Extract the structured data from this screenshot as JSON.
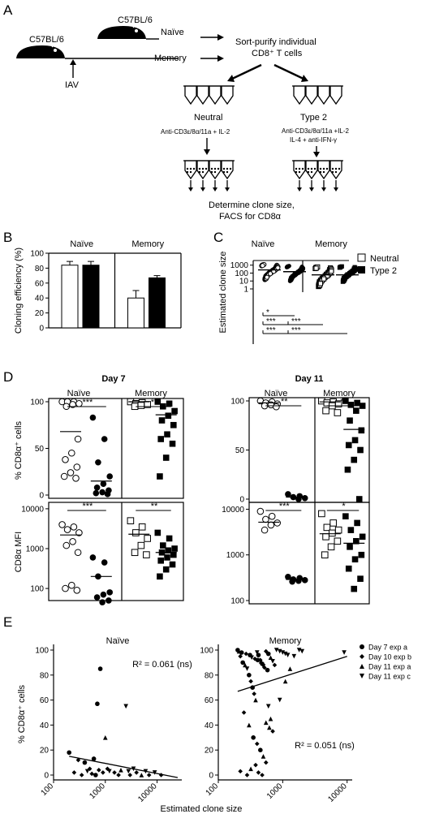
{
  "panel_a": {
    "label": "A",
    "mouse_left": "C57BL/6",
    "mouse_top": "C57BL/6",
    "naive": "Naïve",
    "memory": "Memory",
    "iav": "IAV",
    "sort_line1": "Sort-purify individual",
    "sort_line2": "CD8⁺ T cells",
    "neutral": "Neutral",
    "type2": "Type 2",
    "neutral_cond": "Anti-CD3ε/8α/11a + IL-2",
    "type2_cond1": "Anti-CD3ε/8α/11a +IL-2",
    "type2_cond2": "IL-4 + anti-IFN-γ",
    "determine1": "Determine clone size,",
    "determine2": "FACS for CD8α"
  },
  "panel_b": {
    "label": "B"
  },
  "panel_c": {
    "label": "C",
    "legend_neutral": "Neutral",
    "legend_type2": "Type 2"
  },
  "panel_d": {
    "label": "D"
  },
  "panel_e": {
    "label": "E"
  },
  "chart_data": [
    {
      "id": "B",
      "type": "bar",
      "groups": [
        "Naïve",
        "Memory"
      ],
      "series": [
        {
          "name": "Neutral",
          "values": [
            84,
            40
          ],
          "errors": [
            5,
            10
          ],
          "color": "#ffffff"
        },
        {
          "name": "Type 2",
          "values": [
            84,
            67
          ],
          "errors": [
            5,
            3
          ],
          "color": "#000000"
        }
      ],
      "ylabel": "Cloning efficiency (%)",
      "ylim": [
        0,
        100
      ],
      "yticks": [
        "0",
        "20",
        "40",
        "60",
        "80",
        "100"
      ]
    },
    {
      "id": "C",
      "type": "scatter",
      "scale": "log",
      "groups": [
        "Naïve",
        "Memory"
      ],
      "series_order": [
        "Naïve Neutral",
        "Naïve Type 2",
        "Memory Neutral",
        "Memory Type 2"
      ],
      "ylabel": "Estimated clone size",
      "yticks": [
        "1",
        "10",
        "100",
        "1000"
      ],
      "ylim": [
        1,
        1500
      ],
      "ranges": [
        [
          15,
          1200
        ],
        [
          10,
          800
        ],
        [
          2,
          600
        ],
        [
          8,
          700
        ]
      ],
      "medians": [
        250,
        150,
        60,
        60
      ],
      "significance": [
        {
          "label": "*",
          "from": 1,
          "to": 2
        },
        {
          "label": "***",
          "from": 1,
          "to": 3
        },
        {
          "label": "***",
          "from": 2,
          "to": 3
        },
        {
          "label": "***",
          "from": 1,
          "to": 4
        },
        {
          "label": "***",
          "from": 2,
          "to": 4
        }
      ]
    },
    {
      "id": "D",
      "type": "scatter",
      "titles": [
        "Day 7",
        "Day 11"
      ],
      "groups": [
        "Naïve",
        "Memory"
      ],
      "ylabel_top": "% CD8α⁺ cells",
      "ylabel_bottom": "CD8α  MFI",
      "top_yticks": [
        "0",
        "50",
        "100"
      ],
      "bottom_yticks": [
        "100",
        "1000",
        "10000"
      ],
      "bottom_yticks_day11": [
        "100",
        "1000",
        "10000"
      ],
      "day7_pct": {
        "naive_neutral": [
          100,
          100,
          100,
          98,
          97,
          95,
          60,
          45,
          38,
          30,
          24,
          20,
          18
        ],
        "naive_type2": [
          83,
          60,
          35,
          20,
          12,
          8,
          5,
          3,
          2,
          1
        ],
        "naive_means": [
          68,
          15
        ],
        "memory_neutral": [
          100,
          99,
          98,
          97,
          96,
          95
        ],
        "memory_type2": [
          100,
          98,
          95,
          90,
          85,
          80,
          75,
          65,
          60,
          55,
          40,
          20
        ],
        "memory_means": [
          100,
          86
        ],
        "sig": [
          "***",
          "**"
        ]
      },
      "day7_mfi": {
        "naive_neutral": [
          4000,
          3500,
          3000,
          2500,
          1500,
          1200,
          800,
          120,
          100,
          90
        ],
        "naive_type2": [
          600,
          450,
          200,
          80,
          70,
          60,
          50,
          45
        ],
        "naive_means": [
          2200,
          200
        ],
        "memory_neutral": [
          5000,
          3500,
          2500,
          1800,
          1200,
          800,
          700
        ],
        "memory_type2": [
          2500,
          1800,
          1200,
          1000,
          900,
          800,
          700,
          600,
          500,
          400,
          300,
          200
        ],
        "memory_means": [
          2300,
          800
        ],
        "sig": [
          "***",
          "**"
        ]
      },
      "day11_pct": {
        "naive_neutral": [
          100,
          99,
          98,
          97,
          96,
          95,
          94
        ],
        "naive_type2": [
          5,
          3,
          2,
          1,
          0
        ],
        "naive_means": [
          98,
          2
        ],
        "memory_neutral": [
          100,
          99,
          98,
          97,
          95,
          90,
          88
        ],
        "memory_type2": [
          100,
          98,
          96,
          95,
          90,
          80,
          70,
          60,
          55,
          50,
          40,
          30,
          0
        ],
        "memory_means": [
          99,
          71
        ],
        "sig": [
          "**",
          "**"
        ]
      },
      "day11_mfi": {
        "naive_neutral": [
          9000,
          7000,
          6000,
          5000,
          4500,
          3500
        ],
        "naive_type2": [
          330,
          310,
          290,
          280,
          270,
          260
        ],
        "naive_means": [
          5200,
          290
        ],
        "memory_neutral": [
          8000,
          5000,
          4000,
          3500,
          3000,
          2500,
          2000,
          1500,
          1000
        ],
        "memory_type2": [
          7000,
          5000,
          3500,
          2500,
          2000,
          1500,
          1000,
          800,
          500,
          300,
          180
        ],
        "memory_means": [
          2900,
          1800
        ],
        "sig": [
          "***",
          "*"
        ]
      }
    },
    {
      "id": "E",
      "type": "scatter",
      "titles": [
        "Naïve",
        "Memory"
      ],
      "xlabel": "Estimated clone size",
      "ylabel": "% CD8α⁺ cells",
      "xticks_left": [
        "100",
        "1000",
        "10000"
      ],
      "xticks_right": [
        "100",
        "1000",
        "10000"
      ],
      "yticks": [
        "0",
        "20",
        "40",
        "60",
        "80",
        "100"
      ],
      "r2_left": "R² = 0.061 (ns)",
      "r2_right": "R² = 0.051 (ns)",
      "legend": [
        "Day 7 exp a",
        "Day 10 exp b",
        "Day 11 exp a",
        "Day 11 exp c"
      ],
      "trend_left": {
        "x": [
          200,
          25000
        ],
        "y": [
          15,
          -2
        ]
      },
      "trend_right": {
        "x": [
          200,
          10000
        ],
        "y": [
          67,
          95
        ]
      },
      "naive_points": [
        [
          200,
          18,
          0
        ],
        [
          300,
          12,
          1
        ],
        [
          400,
          10,
          0
        ],
        [
          500,
          5,
          1
        ],
        [
          600,
          13,
          0
        ],
        [
          700,
          57,
          0
        ],
        [
          800,
          85,
          0
        ],
        [
          900,
          2,
          1
        ],
        [
          1000,
          30,
          2
        ],
        [
          1100,
          5,
          1
        ],
        [
          1200,
          3,
          3
        ],
        [
          1500,
          2,
          1
        ],
        [
          1800,
          0,
          1
        ],
        [
          2000,
          4,
          2
        ],
        [
          2500,
          55,
          3
        ],
        [
          2800,
          3,
          3
        ],
        [
          3000,
          0,
          1
        ],
        [
          3500,
          5,
          3
        ],
        [
          4000,
          2,
          1
        ],
        [
          5000,
          0,
          2
        ],
        [
          6000,
          3,
          3
        ],
        [
          7000,
          0,
          1
        ],
        [
          9000,
          2,
          3
        ],
        [
          12000,
          0,
          1
        ],
        [
          250,
          2,
          1
        ],
        [
          350,
          0,
          1
        ],
        [
          450,
          3,
          3
        ],
        [
          550,
          1,
          1
        ],
        [
          650,
          0,
          0
        ],
        [
          750,
          4,
          1
        ]
      ],
      "memory_points": [
        [
          200,
          100,
          0
        ],
        [
          220,
          95,
          1
        ],
        [
          240,
          90,
          0
        ],
        [
          260,
          88,
          2
        ],
        [
          280,
          85,
          3
        ],
        [
          300,
          80,
          0
        ],
        [
          320,
          75,
          1
        ],
        [
          340,
          70,
          0
        ],
        [
          360,
          65,
          1
        ],
        [
          380,
          60,
          2
        ],
        [
          400,
          98,
          3
        ],
        [
          420,
          96,
          0
        ],
        [
          450,
          92,
          1
        ],
        [
          480,
          89,
          0
        ],
        [
          500,
          87,
          3
        ],
        [
          550,
          99,
          1
        ],
        [
          600,
          97,
          0
        ],
        [
          650,
          94,
          2
        ],
        [
          700,
          91,
          3
        ],
        [
          750,
          88,
          1
        ],
        [
          800,
          100,
          3
        ],
        [
          900,
          99,
          3
        ],
        [
          1000,
          98,
          3
        ],
        [
          1100,
          97,
          3
        ],
        [
          1200,
          96,
          3
        ],
        [
          1500,
          95,
          3
        ],
        [
          1800,
          100,
          3
        ],
        [
          2000,
          99,
          3
        ],
        [
          250,
          50,
          1
        ],
        [
          300,
          40,
          2
        ],
        [
          350,
          30,
          0
        ],
        [
          400,
          25,
          1
        ],
        [
          450,
          20,
          0
        ],
        [
          500,
          15,
          2
        ],
        [
          550,
          10,
          1
        ],
        [
          600,
          55,
          3
        ],
        [
          650,
          45,
          2
        ],
        [
          700,
          35,
          1
        ],
        [
          220,
          3,
          1
        ],
        [
          280,
          0,
          1
        ],
        [
          320,
          5,
          2
        ],
        [
          380,
          8,
          1
        ],
        [
          420,
          2,
          1
        ],
        [
          480,
          0,
          1
        ],
        [
          550,
          42,
          2
        ],
        [
          620,
          38,
          2
        ],
        [
          900,
          60,
          3
        ],
        [
          1100,
          75,
          2
        ],
        [
          1300,
          85,
          2
        ],
        [
          9000,
          98,
          3
        ],
        [
          210,
          99,
          2
        ],
        [
          230,
          98,
          0
        ],
        [
          270,
          97,
          1
        ],
        [
          310,
          96,
          0
        ],
        [
          330,
          94,
          3
        ],
        [
          370,
          93,
          1
        ],
        [
          410,
          92,
          0
        ],
        [
          460,
          91,
          2
        ],
        [
          520,
          86,
          1
        ],
        [
          580,
          84,
          0
        ]
      ]
    }
  ]
}
